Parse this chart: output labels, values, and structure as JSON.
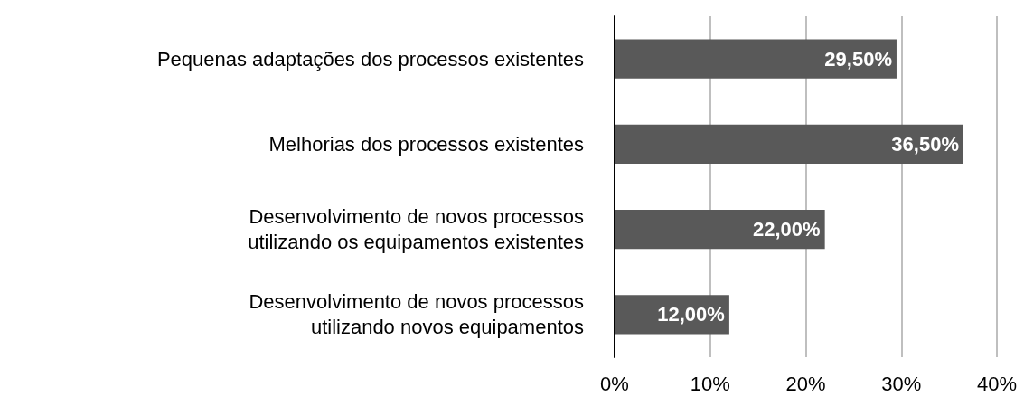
{
  "chart_data": {
    "type": "bar",
    "orientation": "horizontal",
    "categories": [
      "Pequenas adaptações dos processos existentes",
      "Melhorias dos processos existentes",
      "Desenvolvimento de novos processos\nutilizando os equipamentos existentes",
      "Desenvolvimento de novos processos\nutilizando novos equipamentos"
    ],
    "values": [
      29.5,
      36.5,
      22,
      12
    ],
    "value_labels": [
      "29,50%",
      "36,50%",
      "22,00%",
      "12,00%"
    ],
    "color": "#595959",
    "xlim": [
      0,
      40
    ],
    "xticks": [
      {
        "value": 0,
        "label": "0%"
      },
      {
        "value": 10,
        "label": "10%"
      },
      {
        "value": 20,
        "label": "20%"
      },
      {
        "value": 30,
        "label": "30%"
      },
      {
        "value": 40,
        "label": "40%"
      }
    ],
    "grid": "x"
  }
}
